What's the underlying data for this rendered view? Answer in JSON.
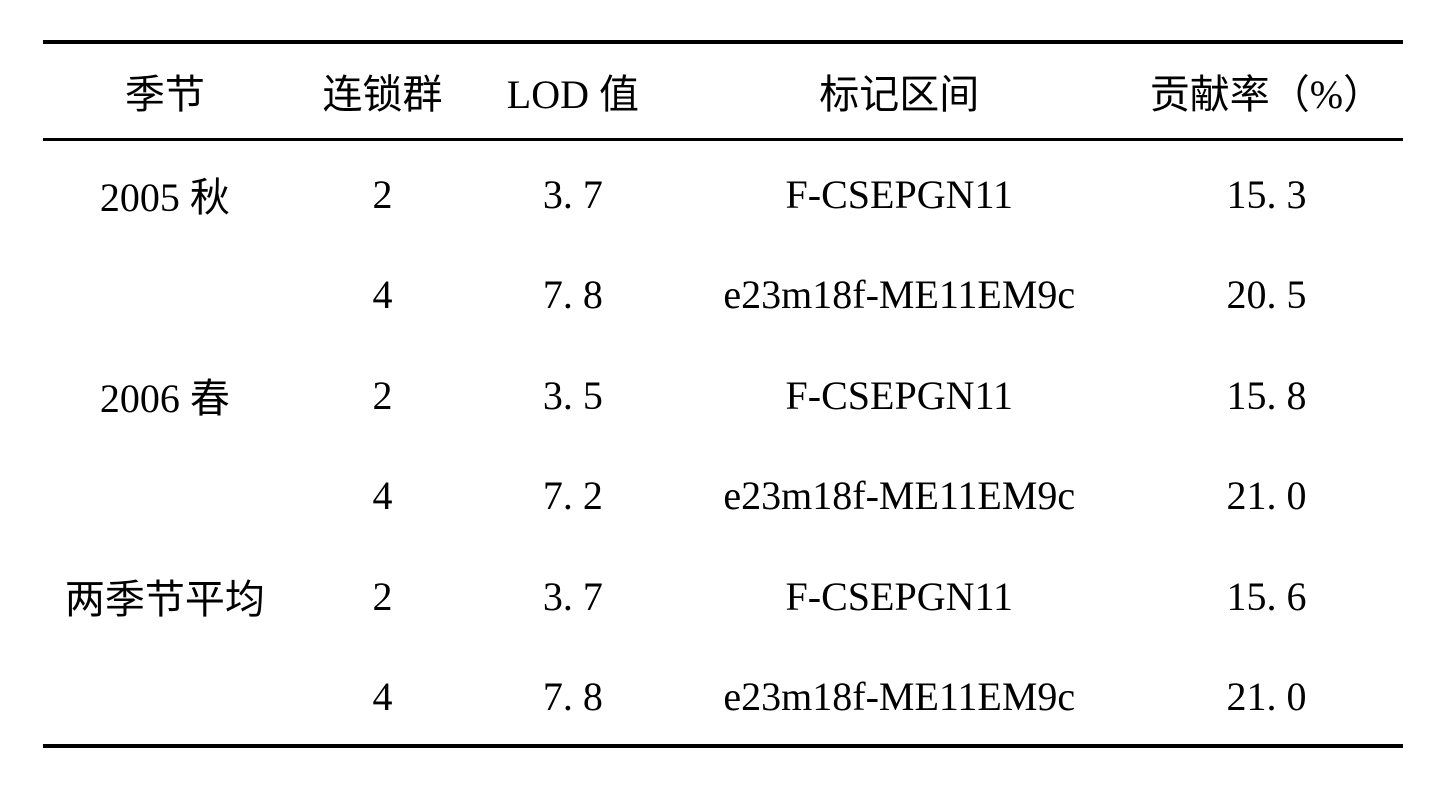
{
  "table": {
    "columns": [
      {
        "key": "season",
        "label": "季节",
        "class": "col-season"
      },
      {
        "key": "linkage",
        "label": "连锁群",
        "class": "col-linkage"
      },
      {
        "key": "lod",
        "label": "LOD 值",
        "class": "col-lod"
      },
      {
        "key": "marker",
        "label": "标记区间",
        "class": "col-marker"
      },
      {
        "key": "contrib",
        "label": "贡献率（%）",
        "class": "col-contrib"
      }
    ],
    "rows": [
      {
        "season": "2005 秋",
        "linkage": "2",
        "lod": "3. 7",
        "marker": "F-CSEPGN11",
        "contrib": "15. 3"
      },
      {
        "season": "",
        "linkage": "4",
        "lod": "7. 8",
        "marker": "e23m18f-ME11EM9c",
        "contrib": "20. 5"
      },
      {
        "season": "2006 春",
        "linkage": "2",
        "lod": "3. 5",
        "marker": "F-CSEPGN11",
        "contrib": "15. 8"
      },
      {
        "season": "",
        "linkage": "4",
        "lod": "7. 2",
        "marker": "e23m18f-ME11EM9c",
        "contrib": "21. 0"
      },
      {
        "season": "两季节平均",
        "linkage": "2",
        "lod": "3.  7",
        "marker": "F-CSEPGN11",
        "contrib": "15. 6"
      },
      {
        "season": "",
        "linkage": "4",
        "lod": "7.  8",
        "marker": "e23m18f-ME11EM9c",
        "contrib": "21. 0"
      }
    ],
    "styling": {
      "font_family": "SimSun",
      "font_size_pt": 40,
      "text_color": "#000000",
      "background_color": "#ffffff",
      "border_color": "#000000",
      "top_border_width": 4,
      "header_bottom_border_width": 3,
      "bottom_border_width": 4,
      "row_padding_v": 24,
      "header_padding_v": 18,
      "text_align": "center"
    }
  }
}
